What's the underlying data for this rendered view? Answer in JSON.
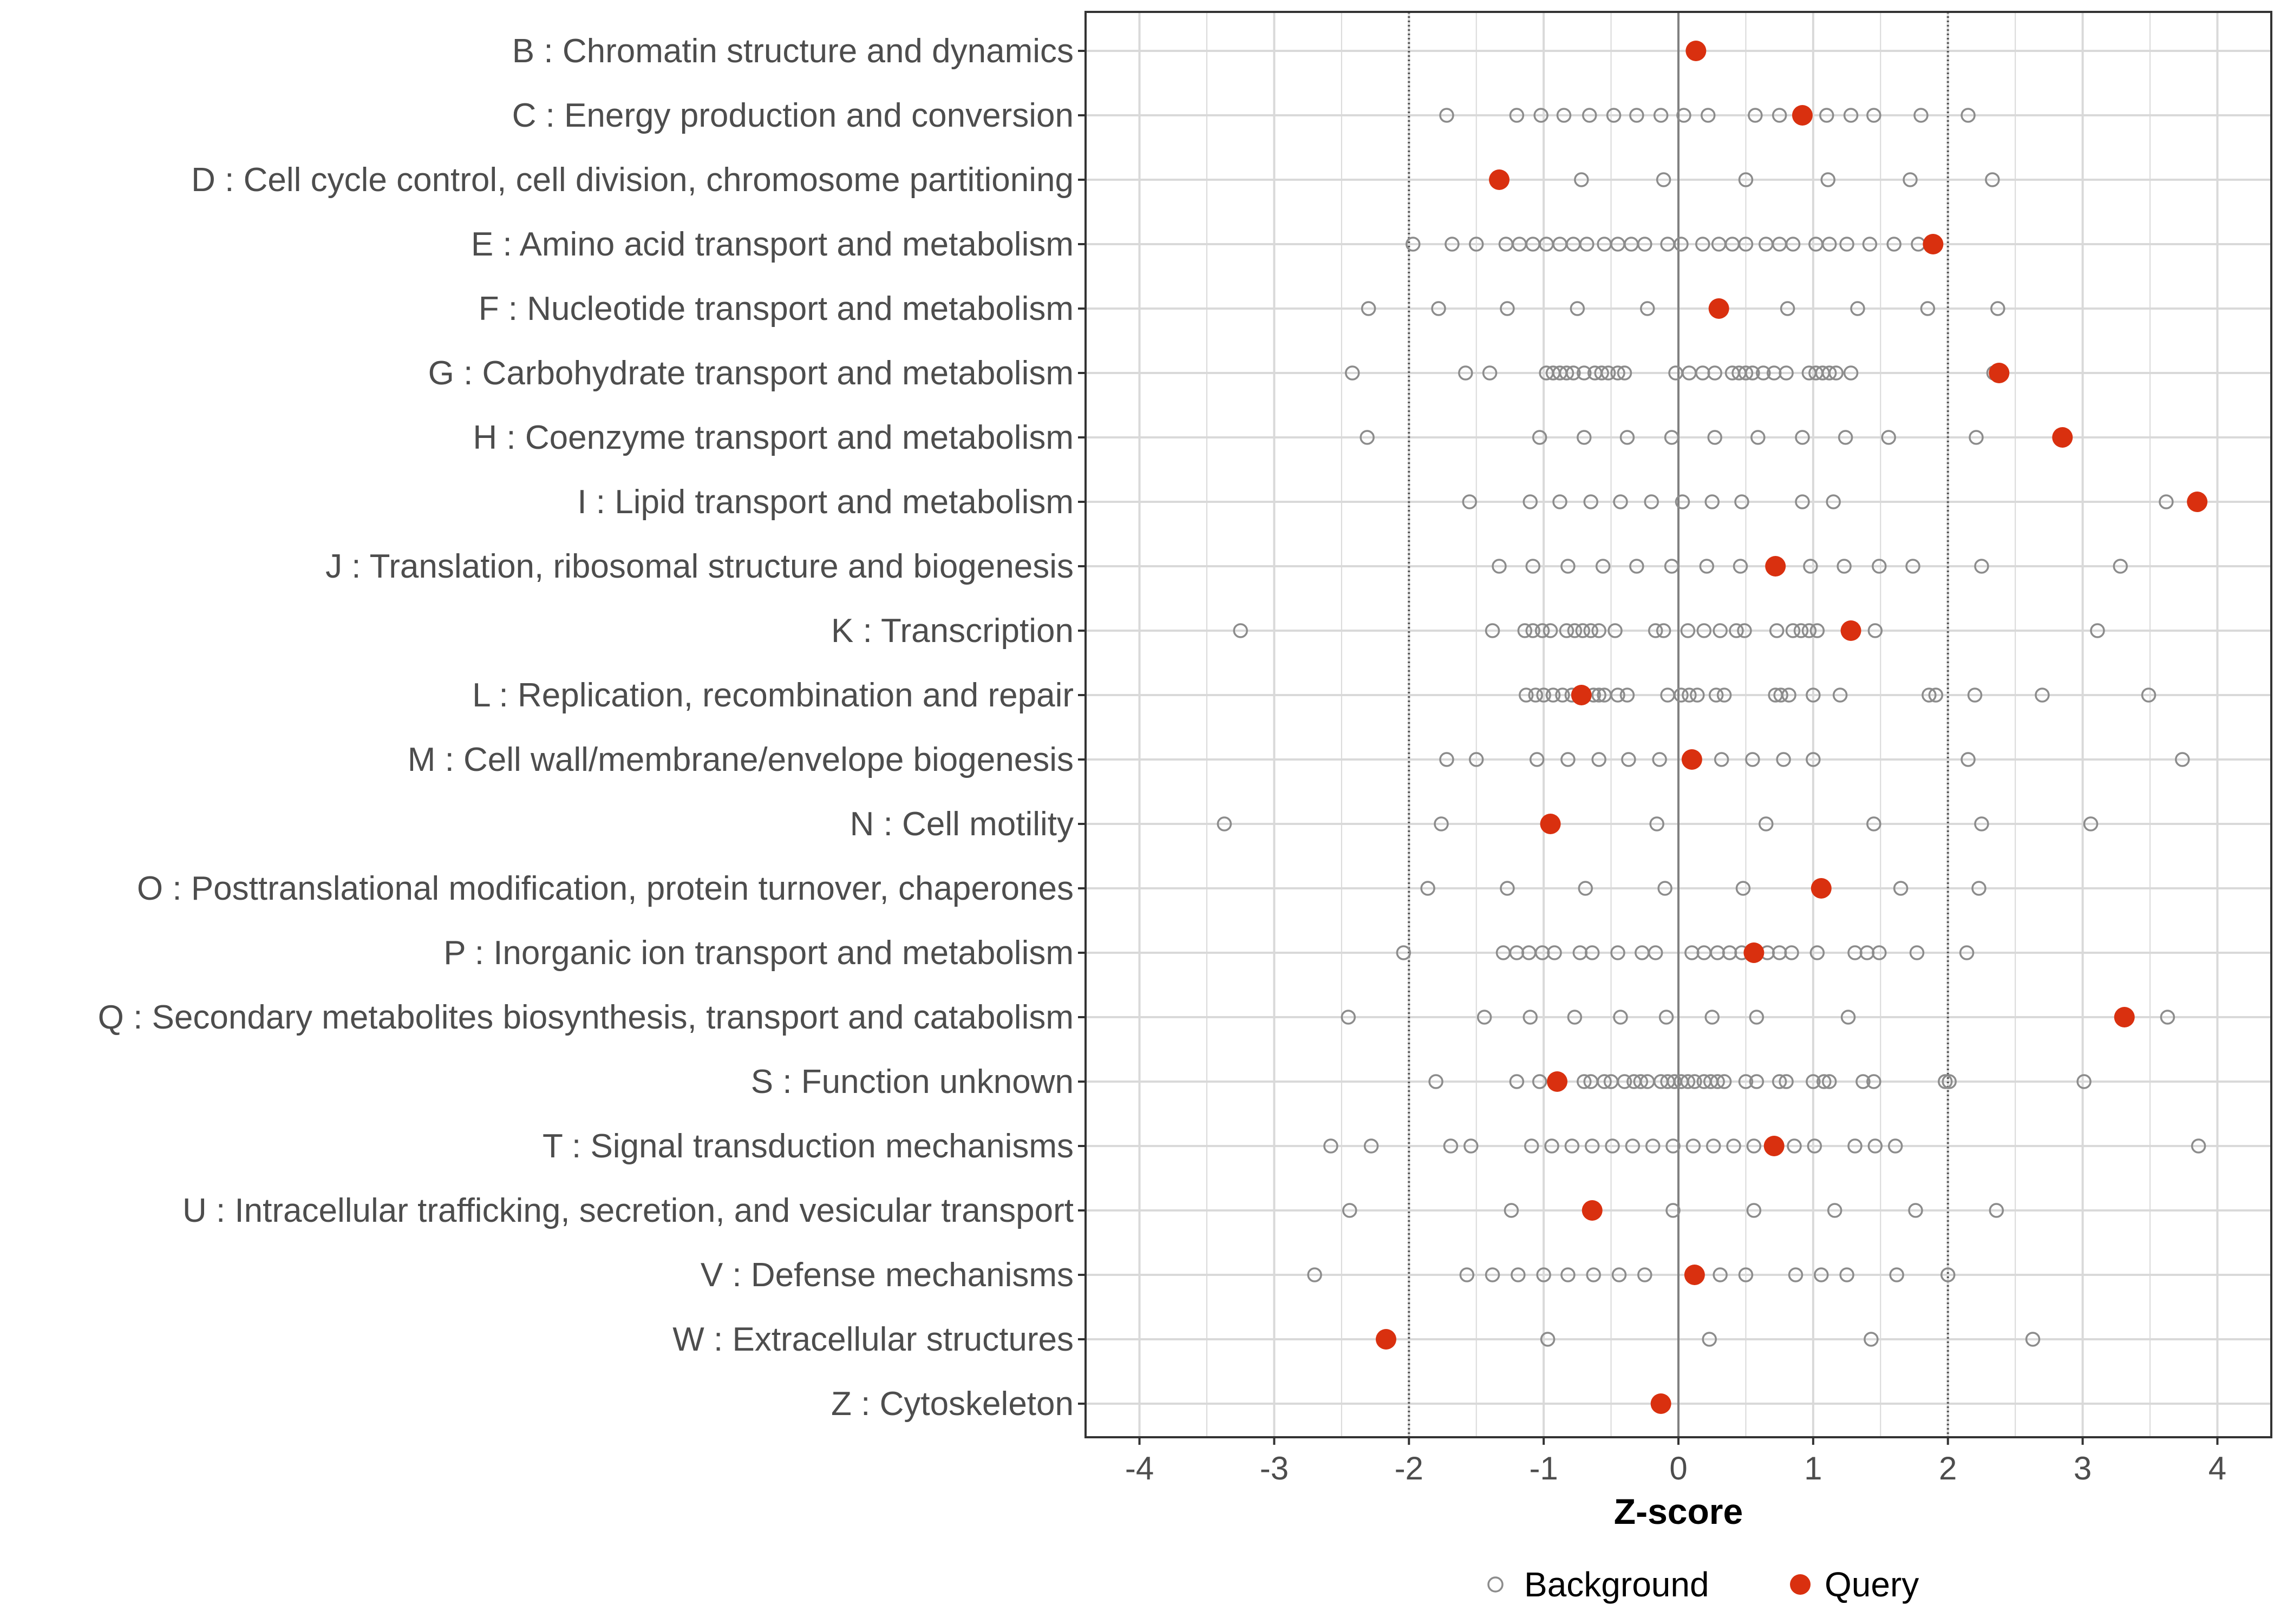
{
  "chart_data": {
    "type": "scatter",
    "orientation": "horizontal-categories",
    "xlabel": "Z-score",
    "ylabel": "",
    "xlim": [
      -4.4,
      4.4
    ],
    "xticks": [
      -4,
      -3,
      -2,
      -1,
      0,
      1,
      2,
      3,
      4
    ],
    "xtick_labels": [
      "-4",
      "-3",
      "-2",
      "-1",
      "0",
      "1",
      "2",
      "3",
      "4"
    ],
    "reference_lines": [
      {
        "x": 0,
        "style": "solid"
      },
      {
        "x": -2,
        "style": "dotted"
      },
      {
        "x": 2,
        "style": "dotted"
      }
    ],
    "grid": true,
    "legend": {
      "position": "bottom",
      "entries": [
        {
          "label": "Background",
          "marker": "open-circle",
          "color": "#8c8c8c"
        },
        {
          "label": "Query",
          "marker": "filled-circle",
          "color": "#d9300f"
        }
      ]
    },
    "colors": {
      "background": "#8c8c8c",
      "query": "#d9300f",
      "grid": "#d9d9d9",
      "zero_line": "#808080",
      "panel_border": "#333333"
    },
    "categories": [
      {
        "label": "B : Chromatin structure and dynamics",
        "query": 0.13,
        "background": []
      },
      {
        "label": "C : Energy production and conversion",
        "query": 0.92,
        "background": [
          -1.72,
          -1.2,
          -1.02,
          -0.85,
          -0.66,
          -0.48,
          -0.31,
          -0.13,
          0.04,
          0.22,
          0.57,
          0.75,
          1.1,
          1.28,
          1.45,
          1.8,
          2.15
        ]
      },
      {
        "label": "D : Cell cycle control, cell division, chromosome partitioning",
        "query": -1.33,
        "background": [
          -0.72,
          -0.11,
          0.5,
          1.11,
          1.72,
          2.33
        ]
      },
      {
        "label": "E : Amino acid transport and metabolism",
        "query": 1.89,
        "background": [
          -1.97,
          -1.68,
          -1.5,
          -1.28,
          -1.18,
          -1.08,
          -0.98,
          -0.88,
          -0.78,
          -0.68,
          -0.55,
          -0.45,
          -0.35,
          -0.25,
          -0.08,
          0.02,
          0.18,
          0.3,
          0.4,
          0.5,
          0.65,
          0.75,
          0.85,
          1.02,
          1.12,
          1.25,
          1.42,
          1.6,
          1.78
        ]
      },
      {
        "label": "F : Nucleotide transport and metabolism",
        "query": 0.3,
        "background": [
          -2.3,
          -1.78,
          -1.27,
          -0.75,
          -0.23,
          0.81,
          1.33,
          1.85,
          2.37
        ]
      },
      {
        "label": "G : Carbohydrate transport and metabolism",
        "query": 2.38,
        "background": [
          -2.42,
          -1.58,
          -1.4,
          -0.98,
          -0.93,
          -0.88,
          -0.83,
          -0.78,
          -0.7,
          -0.62,
          -0.57,
          -0.52,
          -0.45,
          -0.4,
          -0.02,
          0.08,
          0.18,
          0.27,
          0.4,
          0.45,
          0.5,
          0.55,
          0.63,
          0.71,
          0.8,
          0.97,
          1.02,
          1.07,
          1.12,
          1.17,
          1.28,
          2.34
        ]
      },
      {
        "label": "H : Coenzyme transport and metabolism",
        "query": 2.85,
        "background": [
          -2.31,
          -1.03,
          -0.7,
          -0.38,
          -0.05,
          0.27,
          0.59,
          0.92,
          1.24,
          1.56,
          2.21
        ]
      },
      {
        "label": "I : Lipid transport and metabolism",
        "query": 3.85,
        "background": [
          -1.55,
          -1.1,
          -0.88,
          -0.65,
          -0.43,
          -0.2,
          0.03,
          0.25,
          0.47,
          0.92,
          1.15,
          3.62
        ]
      },
      {
        "label": "J : Translation, ribosomal structure and biogenesis",
        "query": 0.72,
        "background": [
          -1.33,
          -1.08,
          -0.82,
          -0.56,
          -0.31,
          -0.05,
          0.21,
          0.46,
          0.98,
          1.23,
          1.49,
          1.74,
          2.25,
          3.28
        ]
      },
      {
        "label": "K : Transcription",
        "query": 1.28,
        "background": [
          -3.25,
          -1.38,
          -1.14,
          -1.08,
          -1.01,
          -0.95,
          -0.83,
          -0.77,
          -0.71,
          -0.65,
          -0.59,
          -0.47,
          -0.17,
          -0.11,
          0.07,
          0.19,
          0.31,
          0.43,
          0.49,
          0.73,
          0.85,
          0.91,
          0.97,
          1.03,
          1.46,
          3.11
        ]
      },
      {
        "label": "L : Replication, recombination and repair",
        "query": -0.72,
        "background": [
          -1.13,
          -1.06,
          -1.0,
          -0.93,
          -0.86,
          -0.79,
          -0.63,
          -0.59,
          -0.55,
          -0.45,
          -0.38,
          -0.08,
          0.02,
          0.08,
          0.14,
          0.28,
          0.34,
          0.72,
          0.76,
          0.82,
          1.0,
          1.2,
          1.86,
          1.91,
          2.2,
          2.7,
          3.49
        ]
      },
      {
        "label": "M : Cell wall/membrane/envelope biogenesis",
        "query": 0.1,
        "background": [
          -1.72,
          -1.5,
          -1.05,
          -0.82,
          -0.59,
          -0.37,
          -0.14,
          0.32,
          0.55,
          0.78,
          1.0,
          2.15,
          3.74
        ]
      },
      {
        "label": "N : Cell motility",
        "query": -0.95,
        "background": [
          -3.37,
          -1.76,
          -0.16,
          0.65,
          1.45,
          2.25,
          3.06
        ]
      },
      {
        "label": "O : Posttranslational modification, protein turnover, chaperones",
        "query": 1.06,
        "background": [
          -1.86,
          -1.27,
          -0.69,
          -0.1,
          0.48,
          1.65,
          2.23
        ]
      },
      {
        "label": "P : Inorganic ion transport and metabolism",
        "query": 0.56,
        "background": [
          -2.04,
          -1.3,
          -1.2,
          -1.11,
          -1.01,
          -0.92,
          -0.73,
          -0.64,
          -0.45,
          -0.27,
          -0.17,
          0.1,
          0.19,
          0.29,
          0.38,
          0.47,
          0.66,
          0.75,
          0.84,
          1.03,
          1.31,
          1.4,
          1.49,
          1.77,
          2.14
        ]
      },
      {
        "label": "Q : Secondary metabolites biosynthesis, transport and catabolism",
        "query": 3.31,
        "background": [
          -2.45,
          -1.44,
          -1.1,
          -0.77,
          -0.43,
          -0.09,
          0.25,
          0.58,
          1.26,
          3.63
        ]
      },
      {
        "label": "S : Function unknown",
        "query": -0.9,
        "background": [
          -1.8,
          -1.2,
          -1.03,
          -0.7,
          -0.65,
          -0.55,
          -0.5,
          -0.4,
          -0.33,
          -0.28,
          -0.23,
          -0.13,
          -0.08,
          -0.03,
          0.02,
          0.07,
          0.12,
          0.19,
          0.24,
          0.29,
          0.34,
          0.5,
          0.58,
          0.75,
          0.8,
          1.0,
          1.08,
          1.12,
          1.37,
          1.45,
          1.98,
          2.01,
          3.01
        ]
      },
      {
        "label": "T : Signal transduction mechanisms",
        "query": 0.71,
        "background": [
          -2.58,
          -2.28,
          -1.69,
          -1.54,
          -1.09,
          -0.94,
          -0.79,
          -0.64,
          -0.49,
          -0.34,
          -0.19,
          -0.04,
          0.11,
          0.26,
          0.41,
          0.56,
          0.86,
          1.01,
          1.31,
          1.46,
          1.61,
          3.86
        ]
      },
      {
        "label": "U : Intracellular trafficking, secretion, and vesicular transport",
        "query": -0.64,
        "background": [
          -2.44,
          -1.24,
          -0.04,
          0.56,
          1.16,
          1.76,
          2.36
        ]
      },
      {
        "label": "V : Defense mechanisms",
        "query": 0.12,
        "background": [
          -2.7,
          -1.57,
          -1.38,
          -1.19,
          -1.0,
          -0.82,
          -0.63,
          -0.44,
          -0.25,
          0.31,
          0.5,
          0.87,
          1.06,
          1.25,
          1.62,
          2.0
        ]
      },
      {
        "label": "W : Extracellular structures",
        "query": -2.17,
        "background": [
          -0.97,
          0.23,
          1.43,
          2.63
        ]
      },
      {
        "label": "Z : Cytoskeleton",
        "query": -0.13,
        "background": []
      }
    ]
  }
}
